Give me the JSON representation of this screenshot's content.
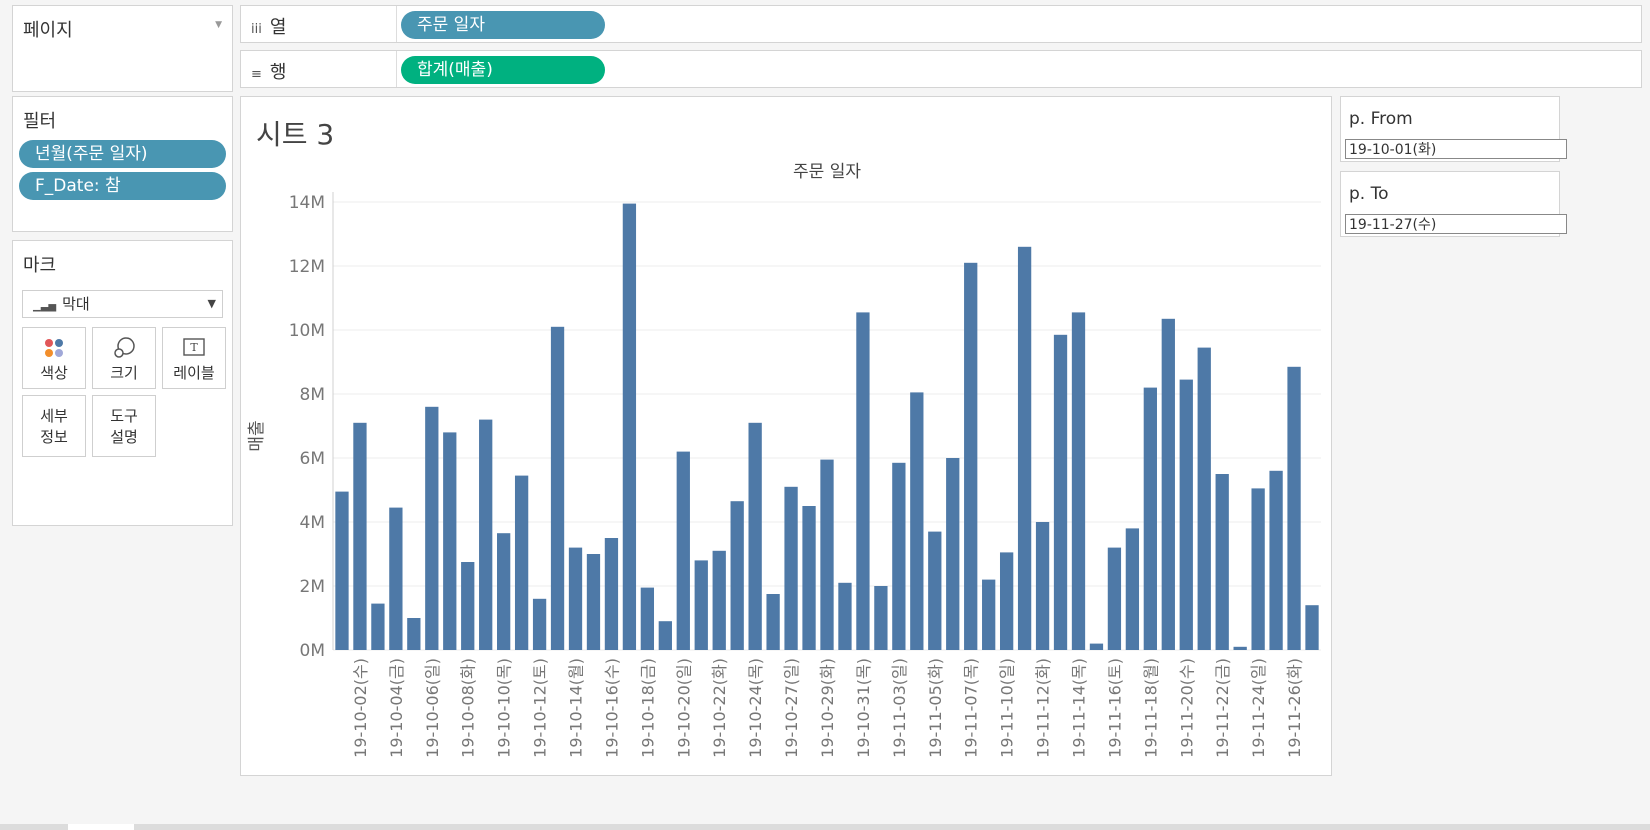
{
  "pages": {
    "title": "페이지"
  },
  "columns": {
    "icon": "iii",
    "label": "열",
    "pill": "주문 일자"
  },
  "rows": {
    "icon": "≡",
    "label": "행",
    "pill": "합계(매출)"
  },
  "filters": {
    "title": "필터",
    "items": [
      "년월(주문 일자)",
      "F_Date: 참"
    ]
  },
  "marks": {
    "title": "마크",
    "type_value": "막대",
    "buttons": [
      {
        "label": "색상",
        "icon": "color-icon"
      },
      {
        "label": "크기",
        "icon": "size-icon"
      },
      {
        "label": "레이블",
        "icon": "label-icon"
      },
      {
        "label": "세부\n정보",
        "line1": "세부",
        "line2": "정보",
        "icon": ""
      },
      {
        "label": "도구\n설명",
        "line1": "도구",
        "line2": "설명",
        "icon": ""
      }
    ]
  },
  "sheet": {
    "title": "시트 3"
  },
  "params": [
    {
      "title": "p. From",
      "value": "19-10-01(화)"
    },
    {
      "title": "p. To",
      "value": "19-11-27(수)"
    }
  ],
  "chart_data": {
    "type": "bar",
    "title": "주문 일자",
    "ylabel": "매출",
    "bar_color": "#4e79a7",
    "ylim": [
      0,
      14000000
    ],
    "yticks": [
      "0M",
      "2M",
      "4M",
      "6M",
      "8M",
      "10M",
      "12M",
      "14M"
    ],
    "grid": true,
    "categories": [
      "19-10-01(화)",
      "19-10-02(수)",
      "19-10-03(목)",
      "19-10-04(금)",
      "19-10-05(토)",
      "19-10-06(일)",
      "19-10-07(월)",
      "19-10-08(화)",
      "19-10-09(수)",
      "19-10-10(목)",
      "19-10-11(금)",
      "19-10-12(토)",
      "19-10-13(일)",
      "19-10-14(월)",
      "19-10-15(화)",
      "19-10-16(수)",
      "19-10-17(목)",
      "19-10-18(금)",
      "19-10-19(토)",
      "19-10-20(일)",
      "19-10-21(월)",
      "19-10-22(화)",
      "19-10-23(수)",
      "19-10-24(목)",
      "19-10-25(금)",
      "19-10-27(일)",
      "19-10-28(월)",
      "19-10-29(화)",
      "19-10-30(수)",
      "19-10-31(목)",
      "19-11-01(금)",
      "19-11-03(일)",
      "19-11-04(월)",
      "19-11-05(화)",
      "19-11-06(수)",
      "19-11-07(목)",
      "19-11-08(금)",
      "19-11-10(일)",
      "19-11-11(월)",
      "19-11-12(화)",
      "19-11-13(수)",
      "19-11-14(목)",
      "19-11-15(금)",
      "19-11-16(토)",
      "19-11-17(일)",
      "19-11-18(월)",
      "19-11-19(화)",
      "19-11-20(수)",
      "19-11-21(목)",
      "19-11-22(금)",
      "19-11-23(토)",
      "19-11-24(일)",
      "19-11-25(월)",
      "19-11-26(화)",
      "19-11-27(수)"
    ],
    "labeled_ticks": [
      "19-10-02(수)",
      "19-10-04(금)",
      "19-10-06(일)",
      "19-10-08(화)",
      "19-10-10(목)",
      "19-10-12(토)",
      "19-10-14(월)",
      "19-10-16(수)",
      "19-10-18(금)",
      "19-10-20(일)",
      "19-10-22(화)",
      "19-10-24(목)",
      "19-10-27(일)",
      "19-10-29(화)",
      "19-10-31(목)",
      "19-11-03(일)",
      "19-11-05(화)",
      "19-11-07(목)",
      "19-11-10(일)",
      "19-11-12(화)",
      "19-11-14(목)",
      "19-11-16(토)",
      "19-11-18(월)",
      "19-11-20(수)",
      "19-11-22(금)",
      "19-11-24(일)",
      "19-11-26(화)"
    ],
    "values": [
      4950000,
      7100000,
      1450000,
      4450000,
      1000000,
      7600000,
      6800000,
      2750000,
      7200000,
      3650000,
      5450000,
      1600000,
      10100000,
      3200000,
      3000000,
      3500000,
      13950000,
      1950000,
      900000,
      6200000,
      2800000,
      3100000,
      4650000,
      7100000,
      1750000,
      5100000,
      4500000,
      5950000,
      2100000,
      10550000,
      2000000,
      5850000,
      8050000,
      3700000,
      6000000,
      12100000,
      2200000,
      3050000,
      12600000,
      4000000,
      9850000,
      10550000,
      200000,
      3200000,
      3800000,
      8200000,
      10350000,
      8450000,
      9450000,
      5500000,
      100000,
      5050000,
      5600000,
      8850000,
      1400000
    ]
  }
}
